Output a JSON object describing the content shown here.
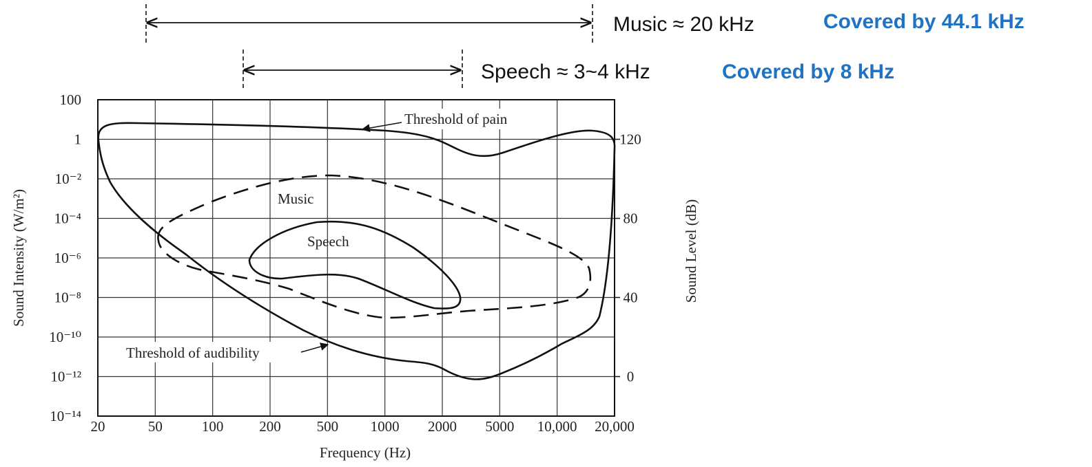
{
  "chart_data": {
    "type": "region",
    "title_lines": [
      {
        "label": "Music ≈ 20 kHz",
        "note": "Covered by 44.1 kHz"
      },
      {
        "label": "Speech ≈ 3~4 kHz",
        "note": "Covered by 8 kHz"
      }
    ],
    "x_label": "Frequency (Hz)",
    "y_label": "Sound Intensity (W/m²)",
    "y2_label": "Sound Level (dB)",
    "categories": [
      "20",
      "50",
      "100",
      "200",
      "500",
      "1000",
      "2000",
      "5000",
      "10,000",
      "20,000"
    ],
    "log_y": true,
    "ylim": [
      1e-14,
      100
    ],
    "yticks": [
      100,
      1,
      {
        "value": 0.01,
        "label": "10⁻²"
      },
      {
        "value": 0.0001,
        "label": "10⁻⁴"
      },
      {
        "value": 1e-06,
        "label": "10⁻⁶"
      },
      {
        "value": 1e-08,
        "label": "10⁻⁸"
      },
      {
        "value": 1e-10,
        "label": "10⁻¹⁰"
      },
      {
        "value": 1e-12,
        "label": "10⁻¹²"
      },
      {
        "value": 1e-14,
        "label": "10⁻¹⁴"
      }
    ],
    "y2lim": [
      -20,
      140
    ],
    "y2ticks": [
      0,
      40,
      80,
      120
    ],
    "grid": true,
    "annotations": [
      "Threshold of pain",
      "Music",
      "Speech",
      "Threshold of audibility"
    ]
  }
}
